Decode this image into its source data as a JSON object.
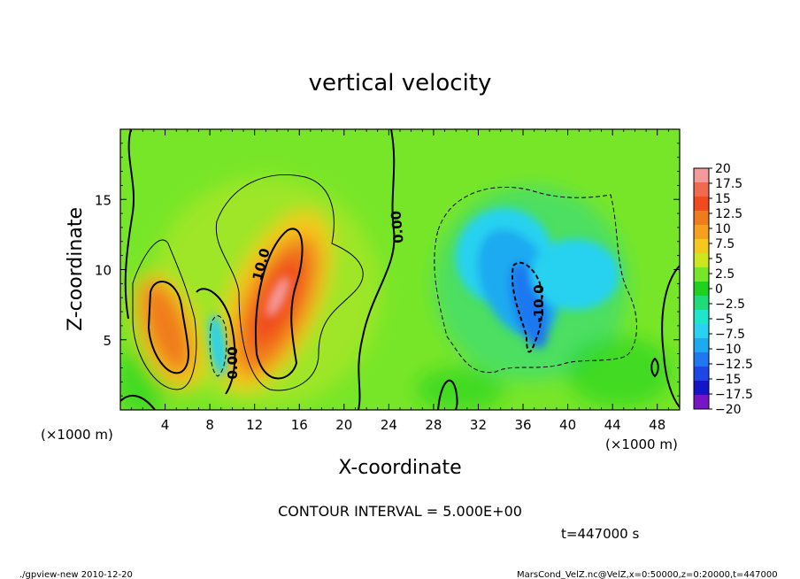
{
  "chart_data": {
    "type": "heatmap",
    "title": "vertical velocity",
    "xlabel": "X-coordinate",
    "ylabel": "Z-coordinate",
    "x_unit_label": "(×1000 m)",
    "y_unit_label": "(×1000 m)",
    "xlim": [
      0,
      50
    ],
    "ylim": [
      0,
      20
    ],
    "x_ticks": [
      "4",
      "8",
      "12",
      "16",
      "20",
      "24",
      "28",
      "32",
      "36",
      "40",
      "44",
      "48"
    ],
    "x_tick_values": [
      4,
      8,
      12,
      16,
      20,
      24,
      28,
      32,
      36,
      40,
      44,
      48
    ],
    "y_ticks": [
      "5",
      "10",
      "15"
    ],
    "y_tick_values": [
      5,
      10,
      15
    ],
    "colorbar": {
      "labels": [
        "20",
        "17.5",
        "15",
        "12.5",
        "10",
        "7.5",
        "5",
        "2.5",
        "0",
        "−2.5",
        "−5",
        "−7.5",
        "−10",
        "−12.5",
        "−15",
        "−17.5",
        "−20"
      ],
      "colors": [
        "#f59a9a",
        "#f06a50",
        "#f04a1e",
        "#f07a1e",
        "#f5a01e",
        "#f5c81e",
        "#cde61e",
        "#78e628",
        "#1ed21e",
        "#1edc78",
        "#1ee6c8",
        "#28d2f0",
        "#1eaaf0",
        "#1e78f0",
        "#1e46e6",
        "#1414c8",
        "#7814c8"
      ]
    },
    "features": [
      {
        "kind": "updraft",
        "x": 4.5,
        "z": 6.5,
        "value": 12
      },
      {
        "kind": "updraft",
        "x": 13.8,
        "z": 8.5,
        "value": 17
      },
      {
        "kind": "downdraft",
        "x": 8.5,
        "z": 4.5,
        "value": -6
      },
      {
        "kind": "downdraft",
        "x": 36.5,
        "z": 7.5,
        "value": -11
      }
    ],
    "contour_labels": [
      "0.00",
      "10.0",
      "0.00",
      "-10.0"
    ],
    "contour_interval_text": "CONTOUR INTERVAL = 5.000E+00",
    "time_text": "t=447000  s"
  },
  "footer": {
    "left": "./gpview-new   2010-12-20",
    "right": "MarsCond_VelZ.nc@VelZ,x=0:50000,z=0:20000,t=447000"
  },
  "colors": {
    "background": "#ffffff",
    "field_base": "#78e628"
  }
}
